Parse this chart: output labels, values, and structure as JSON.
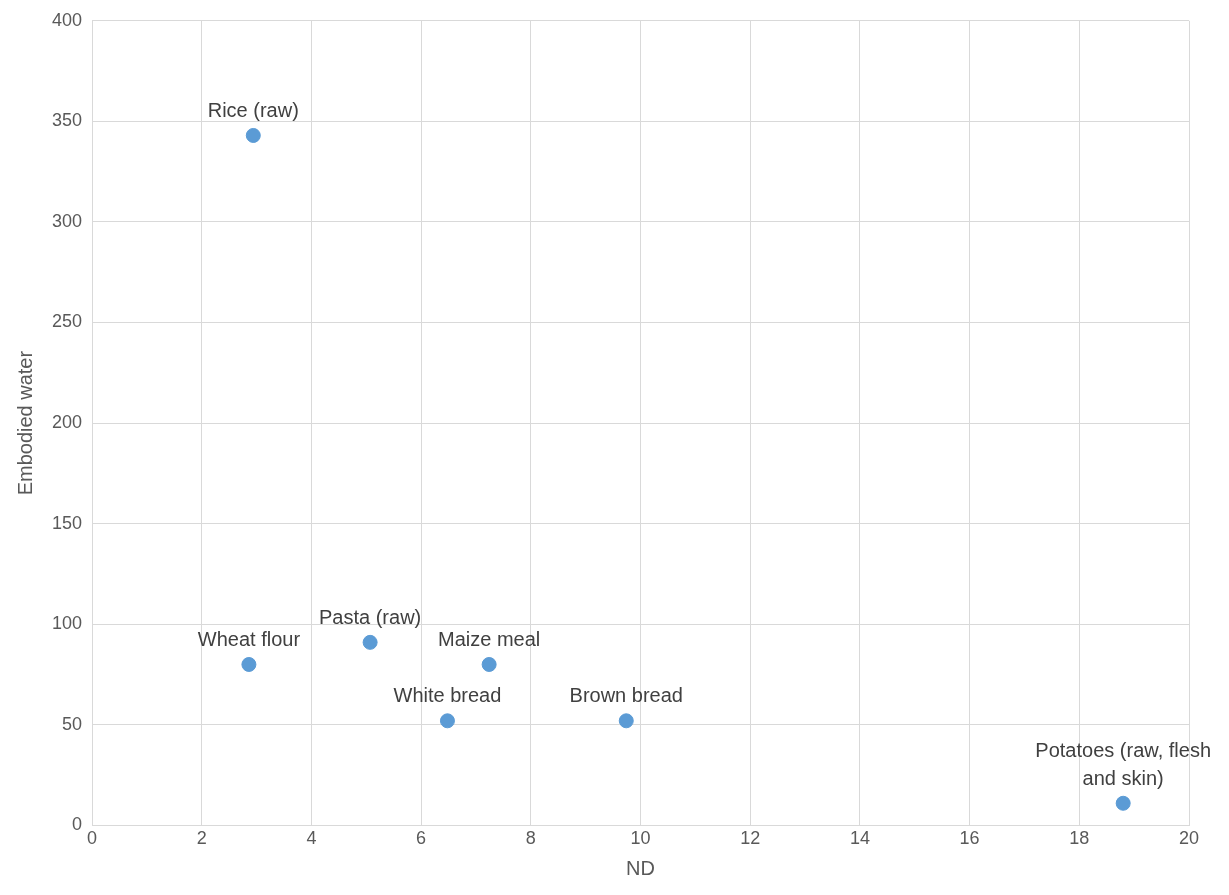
{
  "chart_data": {
    "type": "scatter",
    "xlabel": "ND",
    "ylabel": "Embodied water",
    "x": [
      2.94,
      2.86,
      5.07,
      7.24,
      6.48,
      9.74,
      18.8
    ],
    "series": [
      {
        "color": "#5b9bd5",
        "values": [
          343,
          80,
          91,
          80,
          52,
          52,
          11
        ]
      }
    ],
    "xlim": [
      0,
      20
    ],
    "xticks": [
      0,
      2,
      4,
      6,
      8,
      10,
      12,
      14,
      16,
      18,
      20
    ],
    "ylim": [
      0,
      400
    ],
    "yticks": [
      0,
      50,
      100,
      150,
      200,
      250,
      300,
      350,
      400
    ],
    "grid": true,
    "legend": false,
    "marker": "circle",
    "annotations": [
      {
        "text": "Rice (raw)",
        "x": 2.94,
        "y": 343
      },
      {
        "text": "Wheat flour",
        "x": 2.86,
        "y": 80
      },
      {
        "text": "Pasta (raw)",
        "x": 5.07,
        "y": 91
      },
      {
        "text": "Maize meal",
        "x": 7.24,
        "y": 80
      },
      {
        "text": "White bread",
        "x": 6.48,
        "y": 52
      },
      {
        "text": "Brown bread",
        "x": 9.74,
        "y": 52
      },
      {
        "text": "Potatoes (raw, flesh and skin)",
        "x": 18.8,
        "y": 11
      }
    ]
  }
}
